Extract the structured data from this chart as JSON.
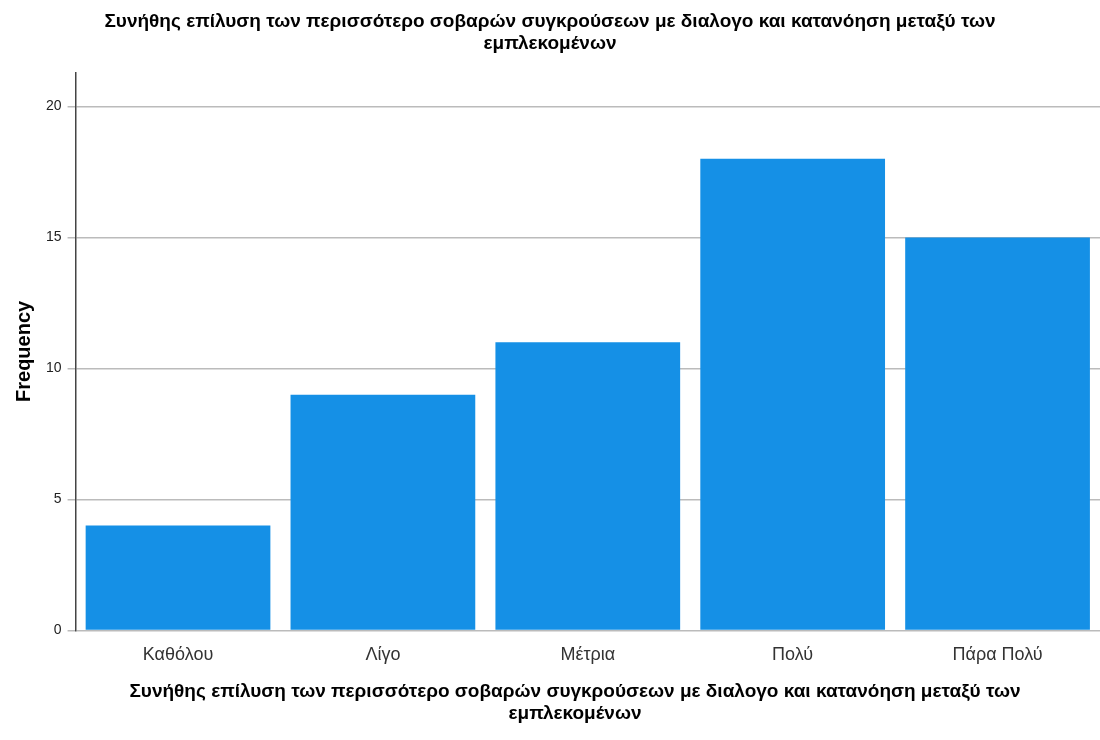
{
  "chart_data": {
    "type": "bar",
    "title": "Συνήθης επίλυση των περισσότερο σοβαρών συγκρούσεων με διαλογο και κατανόηση μεταξύ των εμπλεκομένων",
    "xlabel": "Συνήθης επίλυση των περισσότερο σοβαρών συγκρούσεων με διαλογο και κατανόηση μεταξύ των εμπλεκομένων",
    "ylabel": "Frequency",
    "categories": [
      "Καθόλου",
      "Λίγο",
      "Μέτρια",
      "Πολύ",
      "Πάρα Πολύ"
    ],
    "values": [
      4,
      9,
      11,
      18,
      15
    ],
    "color": "#1590e6",
    "ylim": [
      0,
      21.3
    ],
    "yticks": [
      0,
      5,
      10,
      15,
      20
    ],
    "grid": "y"
  }
}
